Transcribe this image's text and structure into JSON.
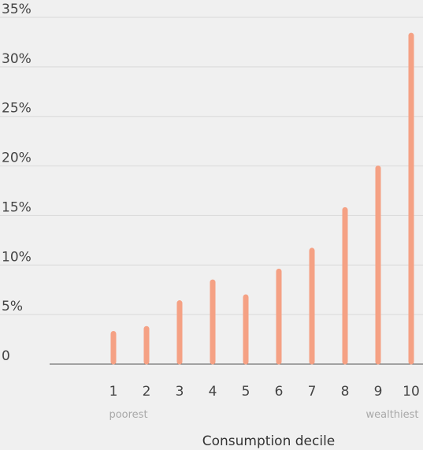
{
  "chart_data": {
    "type": "bar",
    "title": "",
    "xlabel": "Consumption decile",
    "ylabel": "",
    "categories": [
      "1",
      "2",
      "3",
      "4",
      "5",
      "6",
      "7",
      "8",
      "9",
      "10"
    ],
    "category_notes": {
      "first": "poorest",
      "last": "wealthiest"
    },
    "values": [
      3.3,
      3.8,
      6.4,
      8.5,
      7.0,
      9.6,
      11.7,
      15.8,
      20.0,
      33.4
    ],
    "ylim": [
      0,
      35
    ],
    "yticks": [
      "0",
      "5%",
      "10%",
      "15%",
      "20%",
      "25%",
      "30%",
      "35%"
    ],
    "grid": true,
    "colors": {
      "bar_top": "#f5a184",
      "bar_bottom": "#ee8a6a",
      "grid": "#d9d9d9",
      "axis": "#555555"
    }
  }
}
